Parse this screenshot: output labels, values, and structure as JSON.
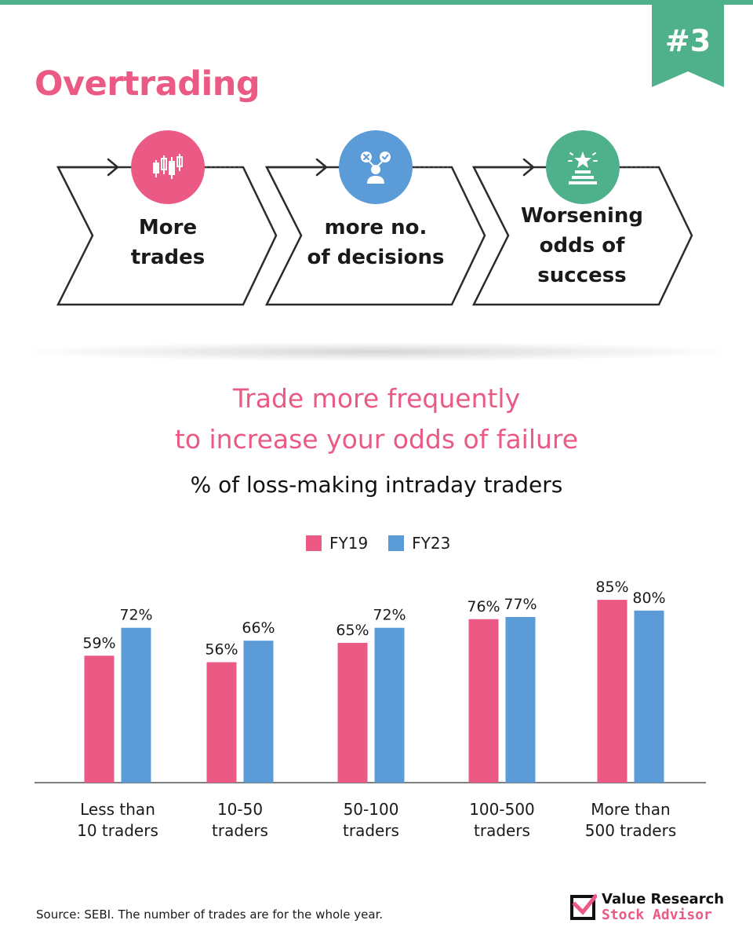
{
  "header": {
    "badge": "#3",
    "title": "Overtrading"
  },
  "flow": {
    "steps": [
      {
        "lines": [
          "More",
          "trades"
        ],
        "icon": "candlestick-chart-icon",
        "color": "#ea5a85"
      },
      {
        "lines": [
          "more no.",
          "of decisions"
        ],
        "icon": "decision-person-icon",
        "color": "#5b9bd8"
      },
      {
        "lines": [
          "Worsening",
          "odds of",
          "success"
        ],
        "icon": "podium-star-icon",
        "color": "#4fb08c"
      }
    ]
  },
  "headline": {
    "line1": "Trade more frequently",
    "line2": "to increase your odds of failure"
  },
  "chart_data": {
    "type": "bar",
    "title": "% of loss-making intraday traders",
    "categories": [
      [
        "Less than",
        "10 traders"
      ],
      [
        "10-50",
        "traders"
      ],
      [
        "50-100",
        "traders"
      ],
      [
        "100-500",
        "traders"
      ],
      [
        "More than",
        "500 traders"
      ]
    ],
    "series": [
      {
        "name": "FY19",
        "color": "#ea5a85",
        "values": [
          59,
          56,
          65,
          76,
          85
        ]
      },
      {
        "name": "FY23",
        "color": "#5b9bd8",
        "values": [
          72,
          66,
          72,
          77,
          80
        ]
      }
    ],
    "value_suffix": "%",
    "legend": "top-center",
    "grid": false
  },
  "footer": {
    "source": "Source: SEBI. The number of trades are for the whole year.",
    "logo_line1": "Value Research",
    "logo_line2": "Stock Advisor"
  }
}
